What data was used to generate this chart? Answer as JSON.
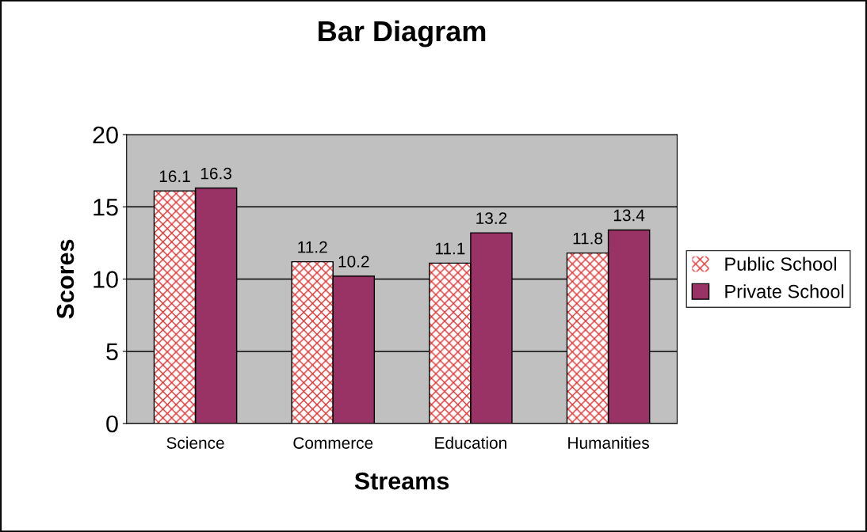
{
  "chart_data": {
    "type": "bar",
    "title": "Bar Diagram",
    "xlabel": "Streams",
    "ylabel": "Scores",
    "categories": [
      "Science",
      "Commerce",
      "Education",
      "Humanities"
    ],
    "series": [
      {
        "name": "Public School",
        "color": "#e03030",
        "values": [
          16.1,
          11.2,
          11.1,
          11.8
        ]
      },
      {
        "name": "Private School",
        "color": "#993366",
        "values": [
          16.3,
          10.2,
          13.2,
          13.4
        ]
      }
    ],
    "ylim": [
      0,
      20
    ],
    "yticks": [
      0,
      5,
      10,
      15,
      20
    ],
    "grid": "y",
    "legend": "right",
    "data_labels": true
  }
}
